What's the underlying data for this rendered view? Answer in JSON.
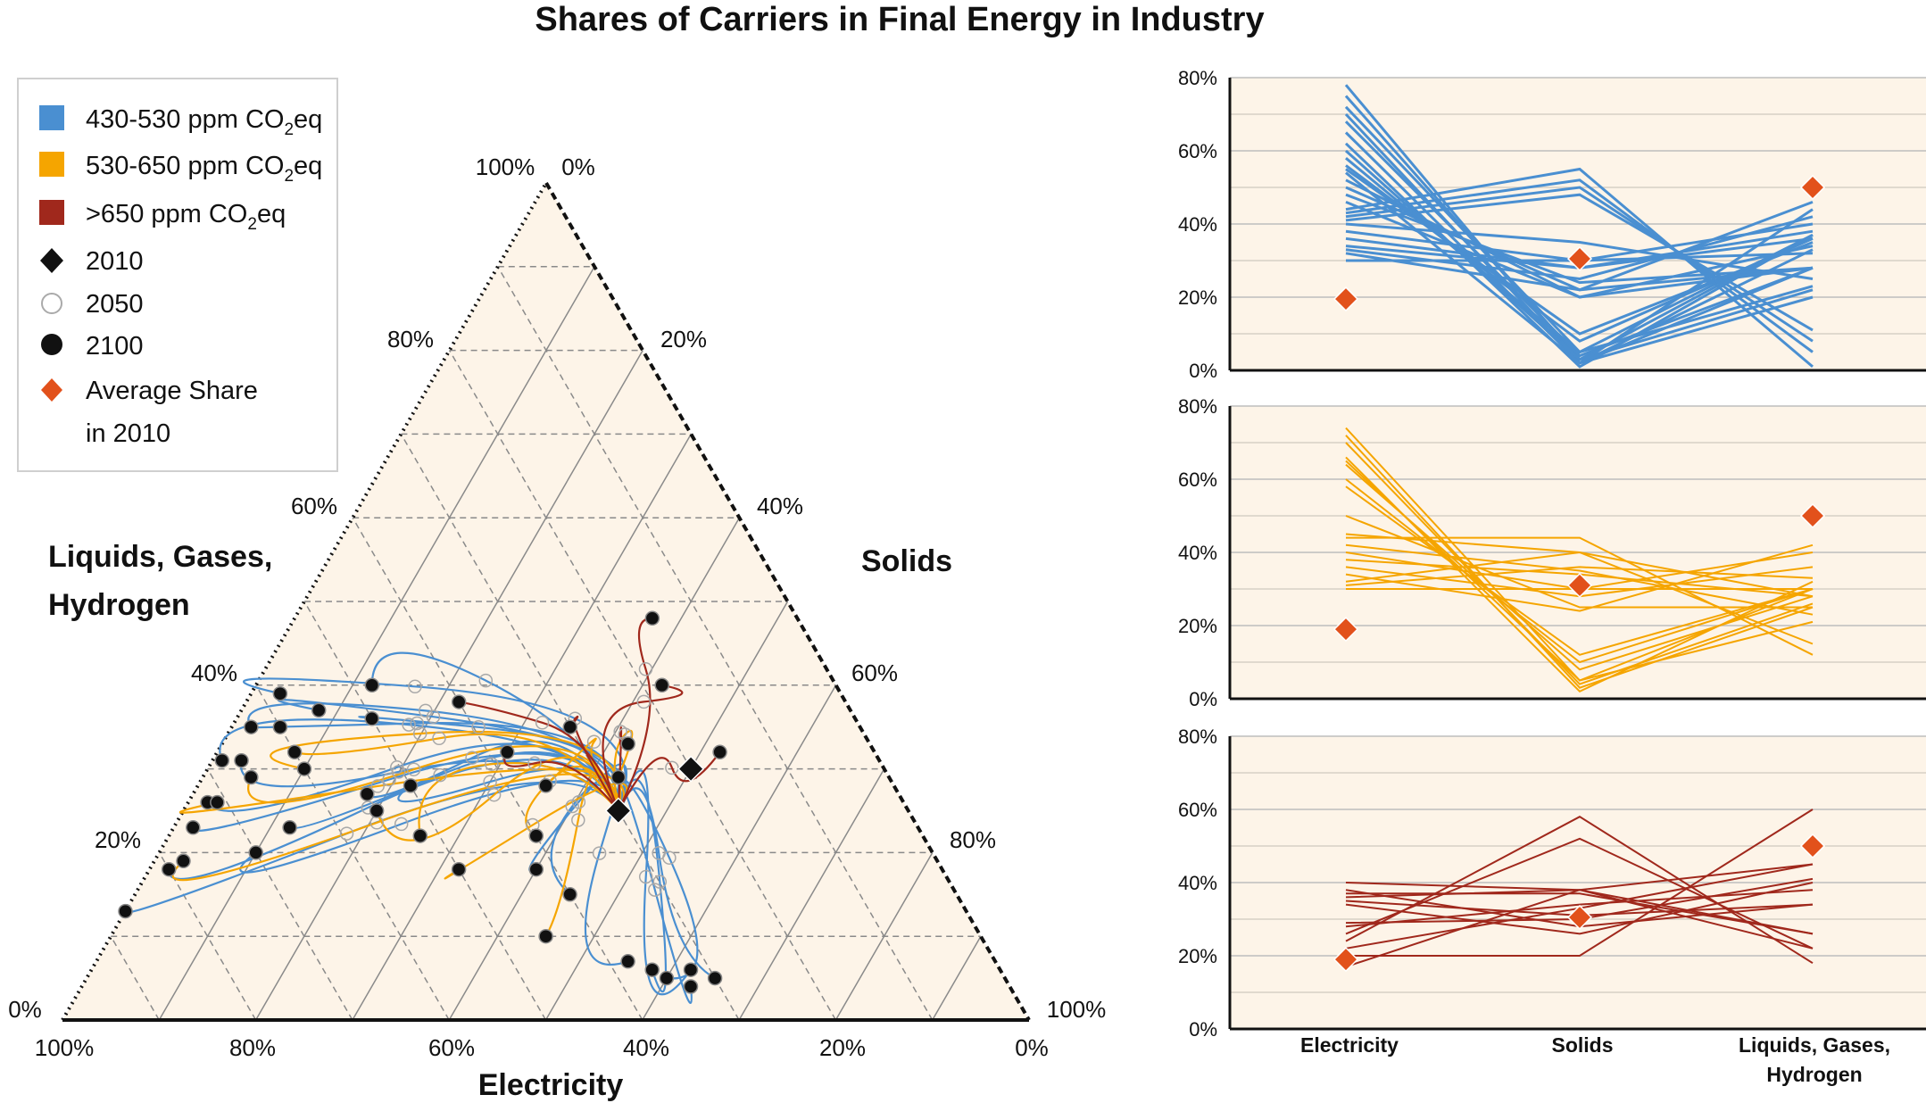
{
  "title": "Shares of Carriers in Final Energy in Industry",
  "colors": {
    "s430": "#4a8fd1",
    "s530": "#f5a500",
    "s650": "#a0281c",
    "avg": "#e2511b",
    "bg": "#fdf4e8"
  },
  "legend": {
    "s430": "430-530 ppm CO",
    "s430_sub": "2",
    "s430_tail": "eq",
    "s530": "530-650 ppm CO",
    "s530_sub": "2",
    "s530_tail": "eq",
    "s650": ">650 ppm CO",
    "s650_sub": "2",
    "s650_tail": "eq",
    "y2010": "2010",
    "y2050": "2050",
    "y2100": "2100",
    "avg1": "Average Share",
    "avg2": "in 2010"
  },
  "ternary": {
    "bottom_label": "Electricity",
    "left_label_1": "Liquids, Gases,",
    "left_label_2": "Hydrogen",
    "right_label": "Solids",
    "bottom_ticks": [
      "100%",
      "80%",
      "60%",
      "40%",
      "20%",
      "0%"
    ],
    "left_ticks": [
      "0%",
      "20%",
      "40%",
      "60%",
      "80%",
      "100%"
    ],
    "right_ticks": [
      "0%",
      "20%",
      "40%",
      "60%",
      "80%",
      "100%"
    ]
  },
  "panels": {
    "y_ticks": [
      "0%",
      "20%",
      "40%",
      "60%",
      "80%"
    ],
    "categories": [
      "Electricity",
      "Solids",
      "Liquids, Gases,"
    ],
    "category_line2": "Hydrogen"
  },
  "chart_data": [
    {
      "type": "scatter",
      "title": "Shares of Carriers in Final Energy in Industry",
      "subtype": "ternary",
      "axes": [
        "Electricity",
        "Solids",
        "Liquids, Gases, Hydrogen"
      ],
      "markers_2010": [
        {
          "electricity": 0.3,
          "solids": 0.45,
          "liquids": 0.25
        },
        {
          "electricity": 0.2,
          "solids": 0.5,
          "liquids": 0.3
        }
      ],
      "series": [
        {
          "name": "430-530 ppm CO2eq",
          "endpoints_2100": [
            {
              "electricity": 0.87,
              "solids": 0.0,
              "liquids": 0.13
            },
            {
              "electricity": 0.8,
              "solids": 0.02,
              "liquids": 0.18
            },
            {
              "electricity": 0.75,
              "solids": 0.02,
              "liquids": 0.23
            },
            {
              "electricity": 0.68,
              "solids": 0.01,
              "liquids": 0.31
            },
            {
              "electricity": 0.63,
              "solids": 0.02,
              "liquids": 0.35
            },
            {
              "electricity": 0.58,
              "solids": 0.03,
              "liquids": 0.39
            },
            {
              "electricity": 0.55,
              "solids": 0.08,
              "liquids": 0.37
            },
            {
              "electricity": 0.5,
              "solids": 0.14,
              "liquids": 0.36
            },
            {
              "electricity": 0.7,
              "solids": 0.1,
              "liquids": 0.2
            },
            {
              "electricity": 0.65,
              "solids": 0.12,
              "liquids": 0.23
            },
            {
              "electricity": 0.55,
              "solids": 0.18,
              "liquids": 0.27
            },
            {
              "electricity": 0.5,
              "solids": 0.22,
              "liquids": 0.28
            },
            {
              "electricity": 0.42,
              "solids": 0.4,
              "liquids": 0.18
            },
            {
              "electricity": 0.4,
              "solids": 0.45,
              "liquids": 0.15
            },
            {
              "electricity": 0.38,
              "solids": 0.55,
              "liquids": 0.07
            },
            {
              "electricity": 0.35,
              "solids": 0.6,
              "liquids": 0.05
            },
            {
              "electricity": 0.33,
              "solids": 0.63,
              "liquids": 0.04
            },
            {
              "electricity": 0.3,
              "solids": 0.65,
              "liquids": 0.05
            },
            {
              "electricity": 0.32,
              "solids": 0.62,
              "liquids": 0.06
            },
            {
              "electricity": 0.36,
              "solids": 0.58,
              "liquids": 0.06
            },
            {
              "electricity": 0.48,
              "solids": 0.12,
              "liquids": 0.4
            },
            {
              "electricity": 0.6,
              "solids": 0.05,
              "liquids": 0.35
            },
            {
              "electricity": 0.66,
              "solids": 0.03,
              "liquids": 0.31
            },
            {
              "electricity": 0.72,
              "solids": 0.02,
              "liquids": 0.26
            }
          ]
        },
        {
          "name": "530-650 ppm CO2eq",
          "endpoints_2100": [
            {
              "electricity": 0.78,
              "solids": 0.03,
              "liquids": 0.19
            },
            {
              "electricity": 0.71,
              "solids": 0.03,
              "liquids": 0.26
            },
            {
              "electricity": 0.6,
              "solids": 0.1,
              "liquids": 0.3
            },
            {
              "electricity": 0.55,
              "solids": 0.2,
              "liquids": 0.25
            },
            {
              "electricity": 0.52,
              "solids": 0.26,
              "liquids": 0.22
            },
            {
              "electricity": 0.5,
              "solids": 0.32,
              "liquids": 0.18
            },
            {
              "electricity": 0.45,
              "solids": 0.45,
              "liquids": 0.1
            },
            {
              "electricity": 0.4,
              "solids": 0.38,
              "liquids": 0.22
            },
            {
              "electricity": 0.36,
              "solids": 0.36,
              "liquids": 0.28
            },
            {
              "electricity": 0.28,
              "solids": 0.43,
              "liquids": 0.29
            },
            {
              "electricity": 0.6,
              "solids": 0.08,
              "liquids": 0.32
            },
            {
              "electricity": 0.66,
              "solids": 0.05,
              "liquids": 0.29
            }
          ]
        },
        {
          "name": ">650 ppm CO2eq",
          "endpoints_2100": [
            {
              "electricity": 0.4,
              "solids": 0.22,
              "liquids": 0.38
            },
            {
              "electricity": 0.38,
              "solids": 0.3,
              "liquids": 0.32
            },
            {
              "electricity": 0.3,
              "solids": 0.35,
              "liquids": 0.35
            },
            {
              "electricity": 0.25,
              "solids": 0.42,
              "liquids": 0.33
            },
            {
              "electricity": 0.18,
              "solids": 0.42,
              "liquids": 0.4
            },
            {
              "electricity": 0.15,
              "solids": 0.37,
              "liquids": 0.48
            },
            {
              "electricity": 0.16,
              "solids": 0.52,
              "liquids": 0.32
            }
          ]
        }
      ]
    },
    {
      "type": "line",
      "title": "",
      "categories": [
        "Electricity",
        "Solids",
        "Liquids, Gases, Hydrogen"
      ],
      "ylim": [
        0,
        80
      ],
      "series": [
        {
          "name": "430-530 ppm CO2eq",
          "values": [
            [
              78,
              2,
              20
            ],
            [
              75,
              3,
              22
            ],
            [
              72,
              5,
              23
            ],
            [
              70,
              2,
              28
            ],
            [
              68,
              4,
              28
            ],
            [
              65,
              2,
              33
            ],
            [
              62,
              1,
              37
            ],
            [
              60,
              3,
              37
            ],
            [
              58,
              5,
              37
            ],
            [
              56,
              8,
              36
            ],
            [
              55,
              10,
              35
            ],
            [
              54,
              2,
              44
            ],
            [
              52,
              20,
              28
            ],
            [
              50,
              22,
              28
            ],
            [
              48,
              24,
              28
            ],
            [
              46,
              20,
              34
            ],
            [
              44,
              55,
              1
            ],
            [
              43,
              52,
              5
            ],
            [
              42,
              50,
              8
            ],
            [
              41,
              48,
              11
            ],
            [
              40,
              35,
              25
            ],
            [
              38,
              30,
              32
            ],
            [
              36,
              28,
              36
            ],
            [
              34,
              28,
              38
            ],
            [
              33,
              25,
              42
            ],
            [
              32,
              22,
              46
            ],
            [
              30,
              30,
              40
            ]
          ]
        },
        {
          "name": "530-650 ppm CO2eq",
          "values": [
            [
              74,
              5,
              21
            ],
            [
              72,
              3,
              25
            ],
            [
              70,
              4,
              26
            ],
            [
              66,
              2,
              32
            ],
            [
              65,
              5,
              30
            ],
            [
              64,
              8,
              28
            ],
            [
              60,
              10,
              30
            ],
            [
              58,
              12,
              30
            ],
            [
              50,
              25,
              25
            ],
            [
              45,
              40,
              15
            ],
            [
              44,
              44,
              12
            ],
            [
              42,
              35,
              23
            ],
            [
              40,
              30,
              30
            ],
            [
              38,
              34,
              28
            ],
            [
              36,
              28,
              36
            ],
            [
              34,
              24,
              42
            ],
            [
              32,
              40,
              28
            ],
            [
              31,
              36,
              33
            ],
            [
              30,
              30,
              40
            ]
          ]
        },
        {
          "name": ">650 ppm CO2eq",
          "values": [
            [
              40,
              38,
              22
            ],
            [
              38,
              28,
              34
            ],
            [
              37,
              37,
              26
            ],
            [
              36,
              38,
              26
            ],
            [
              35,
              31,
              34
            ],
            [
              34,
              26,
              40
            ],
            [
              29,
              30,
              41
            ],
            [
              28,
              34,
              38
            ],
            [
              26,
              52,
              22
            ],
            [
              24,
              58,
              18
            ],
            [
              22,
              33,
              45
            ],
            [
              20,
              20,
              60
            ],
            [
              17,
              38,
              45
            ]
          ]
        },
        {
          "name": "Average Share in 2010",
          "values": [
            [
              19.5,
              30.5,
              50
            ],
            [
              19,
              31,
              50
            ],
            [
              19,
              30.5,
              50
            ]
          ]
        }
      ]
    }
  ]
}
